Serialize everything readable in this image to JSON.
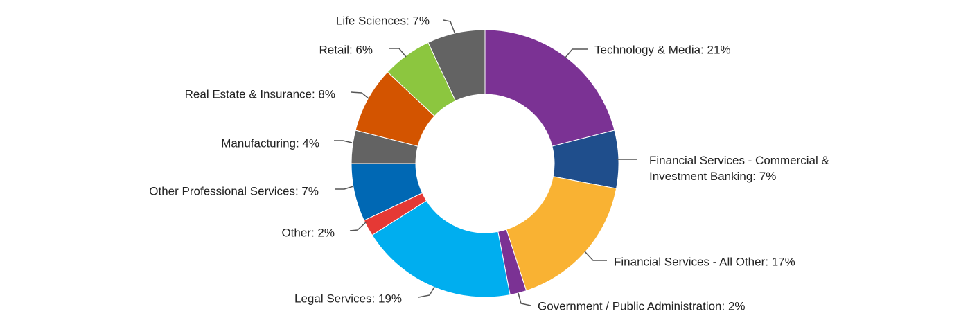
{
  "chart_data": {
    "type": "pie",
    "donut": true,
    "title": "",
    "slices": [
      {
        "label": "Technology & Media",
        "value": 21,
        "display": "Technology & Media: 21%",
        "color": "#7B3294"
      },
      {
        "label": "Financial Services - Commercial & Investment Banking",
        "value": 7,
        "display_lines": [
          "Financial Services - Commercial &",
          "Investment Banking: 7%"
        ],
        "color": "#1F4E8C"
      },
      {
        "label": "Financial Services - All Other",
        "value": 17,
        "display": "Financial Services - All Other: 17%",
        "color": "#F9B233"
      },
      {
        "label": "Government / Public Administration",
        "value": 2,
        "display": "Government / Public Administration: 2%",
        "color": "#7B3294"
      },
      {
        "label": "Legal Services",
        "value": 19,
        "display": "Legal Services: 19%",
        "color": "#00AEEF"
      },
      {
        "label": "Other",
        "value": 2,
        "display": "Other: 2%",
        "color": "#E53935"
      },
      {
        "label": "Other Professional Services",
        "value": 7,
        "display": "Other Professional Services: 7%",
        "color": "#0068B4"
      },
      {
        "label": "Manufacturing",
        "value": 4,
        "display": "Manufacturing: 4%",
        "color": "#636363"
      },
      {
        "label": "Real Estate & Insurance",
        "value": 8,
        "display": "Real Estate & Insurance: 8%",
        "color": "#D35400"
      },
      {
        "label": "Retail",
        "value": 6,
        "display": "Retail: 6%",
        "color": "#8CC63F"
      },
      {
        "label": "Life Sciences",
        "value": 7,
        "display": "Life Sciences: 7%",
        "color": "#636363"
      }
    ]
  }
}
